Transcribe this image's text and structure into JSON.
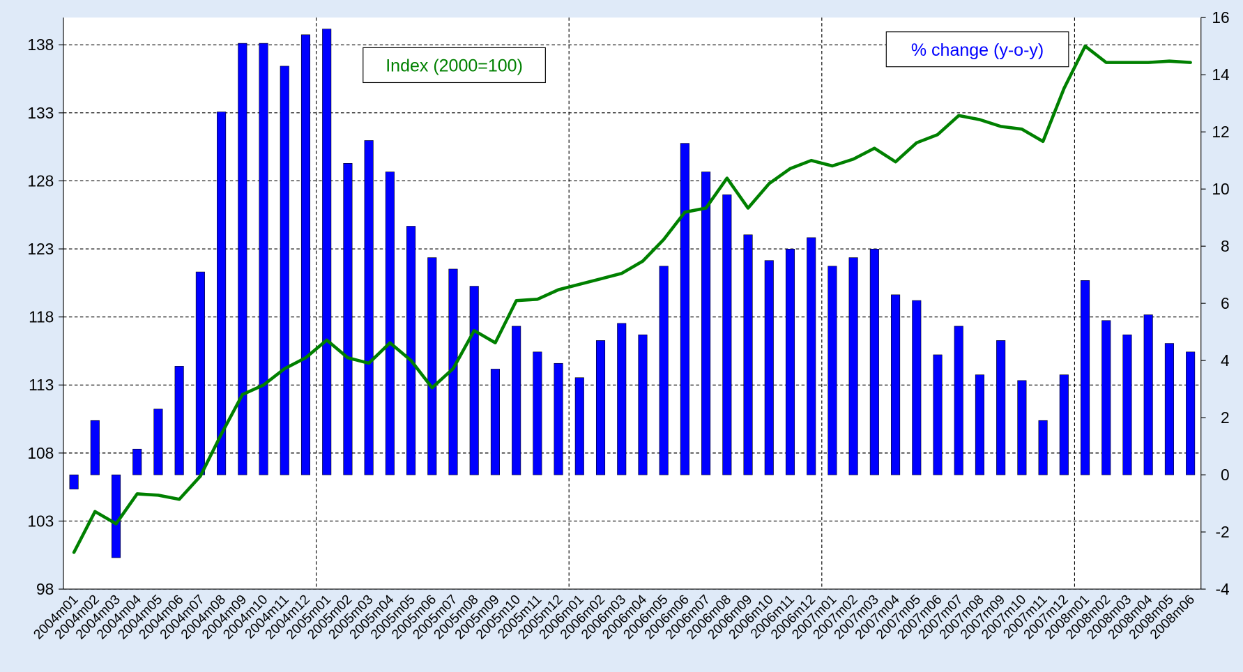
{
  "chart_data": {
    "type": "bar",
    "categories": [
      "2004m01",
      "2004m02",
      "2004m03",
      "2004m04",
      "2004m05",
      "2004m06",
      "2004m07",
      "2004m08",
      "2004m09",
      "2004m10",
      "2004m11",
      "2004m12",
      "2005m01",
      "2005m02",
      "2005m03",
      "2005m04",
      "2005m05",
      "2005m06",
      "2005m07",
      "2005m08",
      "2005m09",
      "2005m10",
      "2005m11",
      "2005m12",
      "2006m01",
      "2006m02",
      "2006m03",
      "2006m04",
      "2006m05",
      "2006m06",
      "2006m07",
      "2006m08",
      "2006m09",
      "2006m10",
      "2006m11",
      "2006m12",
      "2007m01",
      "2007m02",
      "2007m03",
      "2007m04",
      "2007m05",
      "2007m06",
      "2007m07",
      "2007m08",
      "2007m09",
      "2007m10",
      "2007m11",
      "2007m12",
      "2008m01",
      "2008m02",
      "2008m03",
      "2008m04",
      "2008m05",
      "2008m06"
    ],
    "series": [
      {
        "name": "% change (y-o-y)",
        "type": "bar",
        "axis": "y2",
        "color": "#0000ff",
        "values": [
          -0.5,
          1.9,
          -2.9,
          0.9,
          2.3,
          3.8,
          7.1,
          12.7,
          15.1,
          15.1,
          14.3,
          15.4,
          15.6,
          10.9,
          11.7,
          10.6,
          8.7,
          7.6,
          7.2,
          6.6,
          3.7,
          5.2,
          4.3,
          3.9,
          3.4,
          4.7,
          5.3,
          4.9,
          7.3,
          11.6,
          10.6,
          9.8,
          8.4,
          7.5,
          7.9,
          8.3,
          7.3,
          7.6,
          7.9,
          6.3,
          6.1,
          4.2,
          5.2,
          3.5,
          4.7,
          3.3,
          1.9,
          3.5,
          6.8,
          5.4,
          4.9,
          5.6,
          4.6,
          4.3
        ]
      },
      {
        "name": "Index (2000=100)",
        "type": "line",
        "axis": "y",
        "color": "#008000",
        "values": [
          100.7,
          103.7,
          102.8,
          105.0,
          104.9,
          104.6,
          106.3,
          109.4,
          112.3,
          113.0,
          114.2,
          115.0,
          116.3,
          115.0,
          114.6,
          116.1,
          114.8,
          112.8,
          114.2,
          117.0,
          116.1,
          119.2,
          119.3,
          120.0,
          120.4,
          120.8,
          121.2,
          122.1,
          123.7,
          125.7,
          126.0,
          128.2,
          126.0,
          127.8,
          128.9,
          129.5,
          129.1,
          129.6,
          130.4,
          129.4,
          130.8,
          131.4,
          132.8,
          132.5,
          132.0,
          131.8,
          130.9,
          134.8,
          137.9,
          136.7,
          136.7,
          136.7,
          136.8,
          136.7
        ]
      }
    ],
    "ylim": [
      98,
      140
    ],
    "yticks": [
      98,
      103,
      108,
      113,
      118,
      123,
      128,
      133,
      138
    ],
    "y2lim": [
      -4,
      16
    ],
    "y2ticks": [
      -4,
      -2,
      0,
      2,
      4,
      6,
      8,
      10,
      12,
      14,
      16
    ],
    "grid": true
  }
}
